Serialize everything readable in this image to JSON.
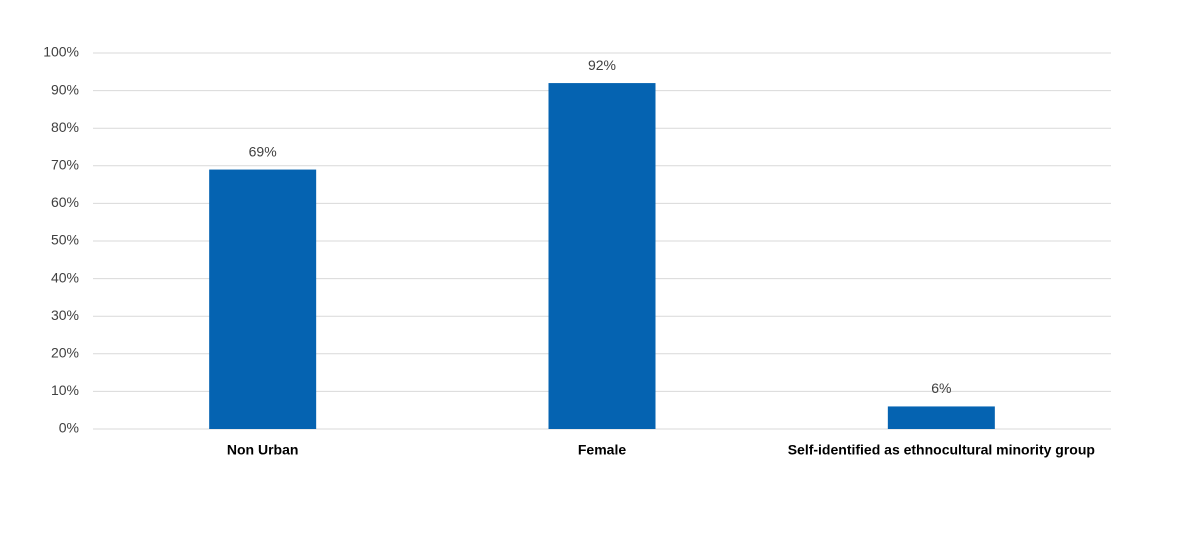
{
  "chart_data": {
    "type": "bar",
    "categories": [
      "Non Urban",
      "Female",
      "Self-identified as ethnocultural minority group"
    ],
    "values": [
      69,
      92,
      6
    ],
    "value_labels": [
      "69%",
      "92%",
      "6%"
    ],
    "color": "#0563b1",
    "ylim": [
      0,
      100
    ],
    "yticks": [
      {
        "value": 0,
        "label": "0%"
      },
      {
        "value": 10,
        "label": "10%"
      },
      {
        "value": 20,
        "label": "20%"
      },
      {
        "value": 30,
        "label": "30%"
      },
      {
        "value": 40,
        "label": "40%"
      },
      {
        "value": 50,
        "label": "50%"
      },
      {
        "value": 60,
        "label": "60%"
      },
      {
        "value": 70,
        "label": "70%"
      },
      {
        "value": 80,
        "label": "80%"
      },
      {
        "value": 90,
        "label": "90%"
      },
      {
        "value": 100,
        "label": "100%"
      }
    ],
    "grid": true
  }
}
